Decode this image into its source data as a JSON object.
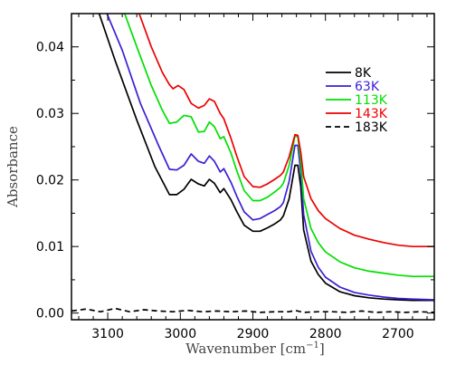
{
  "chart_data": {
    "type": "line",
    "title": "",
    "xlabel": "Wavenumber [cm",
    "xlabel_sup": "−1",
    "xlabel_end": "]",
    "ylabel": "Absorbance",
    "xlim": [
      3150,
      2650
    ],
    "ylim": [
      -0.001,
      0.045
    ],
    "xticks": [
      3100,
      3000,
      2900,
      2800,
      2700
    ],
    "xtick_labels": [
      "3100",
      "3000",
      "2900",
      "2800",
      "2700"
    ],
    "yticks": [
      0.0,
      0.01,
      0.02,
      0.03,
      0.04
    ],
    "ytick_labels": [
      "0.00",
      "0.01",
      "0.02",
      "0.03",
      "0.04"
    ],
    "legend_position": "right",
    "grid": false,
    "series": [
      {
        "name": "8K",
        "color": "#000000",
        "dash": "solid",
        "x": [
          3115,
          3090,
          3060,
          3035,
          3015,
          3005,
          2995,
          2985,
          2975,
          2967,
          2960,
          2953,
          2945,
          2940,
          2930,
          2922,
          2912,
          2900,
          2890,
          2880,
          2870,
          2862,
          2858,
          2850,
          2842,
          2838,
          2834,
          2830,
          2820,
          2810,
          2800,
          2780,
          2760,
          2740,
          2720,
          2700,
          2680,
          2650
        ],
        "y": [
          0.046,
          0.038,
          0.029,
          0.022,
          0.0178,
          0.0178,
          0.0186,
          0.0201,
          0.0194,
          0.0191,
          0.0201,
          0.0195,
          0.0181,
          0.0187,
          0.017,
          0.0152,
          0.0132,
          0.0123,
          0.0123,
          0.0128,
          0.0134,
          0.014,
          0.0146,
          0.0172,
          0.0222,
          0.0222,
          0.019,
          0.0125,
          0.0078,
          0.0058,
          0.0045,
          0.0032,
          0.0026,
          0.0023,
          0.0021,
          0.002,
          0.0019,
          0.0019
        ]
      },
      {
        "name": "63K",
        "color": "#3b1fd6",
        "dash": "solid",
        "x": [
          3105,
          3080,
          3055,
          3030,
          3015,
          3005,
          2995,
          2985,
          2975,
          2967,
          2960,
          2953,
          2945,
          2940,
          2930,
          2922,
          2912,
          2900,
          2890,
          2880,
          2870,
          2862,
          2858,
          2850,
          2842,
          2838,
          2834,
          2830,
          2820,
          2810,
          2800,
          2780,
          2760,
          2740,
          2720,
          2700,
          2680,
          2650
        ],
        "y": [
          0.046,
          0.0395,
          0.0315,
          0.0252,
          0.0216,
          0.0215,
          0.0222,
          0.0239,
          0.0228,
          0.0225,
          0.0236,
          0.0228,
          0.0212,
          0.0217,
          0.0196,
          0.0175,
          0.0152,
          0.014,
          0.0142,
          0.0148,
          0.0154,
          0.016,
          0.0166,
          0.0198,
          0.0252,
          0.0252,
          0.0212,
          0.0148,
          0.0093,
          0.0069,
          0.0054,
          0.0039,
          0.0031,
          0.0027,
          0.0024,
          0.0022,
          0.0021,
          0.002
        ]
      },
      {
        "name": "113K",
        "color": "#00e000",
        "dash": "solid",
        "x": [
          3080,
          3060,
          3040,
          3025,
          3015,
          3005,
          2995,
          2985,
          2975,
          2967,
          2960,
          2953,
          2945,
          2940,
          2930,
          2922,
          2912,
          2900,
          2890,
          2880,
          2870,
          2862,
          2858,
          2850,
          2842,
          2838,
          2834,
          2830,
          2820,
          2810,
          2800,
          2780,
          2760,
          2740,
          2720,
          2700,
          2680,
          2650
        ],
        "y": [
          0.046,
          0.04,
          0.0342,
          0.0305,
          0.0285,
          0.0287,
          0.0297,
          0.0295,
          0.0272,
          0.0273,
          0.0287,
          0.028,
          0.0262,
          0.0265,
          0.024,
          0.0213,
          0.0184,
          0.0169,
          0.0169,
          0.0174,
          0.0182,
          0.0189,
          0.0195,
          0.0222,
          0.0266,
          0.0265,
          0.0228,
          0.0172,
          0.0127,
          0.0106,
          0.0092,
          0.0077,
          0.0068,
          0.0063,
          0.006,
          0.0057,
          0.0055,
          0.0055
        ]
      },
      {
        "name": "143K",
        "color": "#ee0000",
        "dash": "solid",
        "x": [
          3060,
          3040,
          3025,
          3015,
          3010,
          3003,
          2995,
          2985,
          2975,
          2967,
          2960,
          2953,
          2945,
          2940,
          2930,
          2922,
          2912,
          2900,
          2890,
          2880,
          2870,
          2862,
          2858,
          2850,
          2842,
          2838,
          2834,
          2830,
          2820,
          2810,
          2800,
          2780,
          2760,
          2740,
          2720,
          2700,
          2680,
          2650
        ],
        "y": [
          0.046,
          0.04,
          0.0362,
          0.0343,
          0.0337,
          0.0342,
          0.0336,
          0.0315,
          0.0308,
          0.0312,
          0.0322,
          0.0318,
          0.03,
          0.0292,
          0.0262,
          0.0235,
          0.0205,
          0.019,
          0.0189,
          0.0194,
          0.0201,
          0.0207,
          0.0212,
          0.0235,
          0.0268,
          0.0267,
          0.0242,
          0.0205,
          0.0172,
          0.0154,
          0.0142,
          0.0127,
          0.0117,
          0.0111,
          0.0106,
          0.0102,
          0.01,
          0.01
        ]
      },
      {
        "name": "183K",
        "color": "#000000",
        "dash": "dashed",
        "x": [
          3150,
          3130,
          3110,
          3090,
          3070,
          3050,
          3030,
          3010,
          2990,
          2970,
          2950,
          2930,
          2910,
          2890,
          2870,
          2850,
          2842,
          2830,
          2810,
          2790,
          2770,
          2750,
          2730,
          2710,
          2690,
          2670,
          2650
        ],
        "y": [
          0.0003,
          0.0006,
          0.0002,
          0.0007,
          0.0002,
          0.0005,
          0.0003,
          0.0002,
          0.0004,
          0.0002,
          0.0003,
          0.0002,
          0.0003,
          0.0001,
          0.0002,
          0.0002,
          0.0004,
          0.0001,
          0.0002,
          0.0002,
          0.0001,
          0.0003,
          0.0001,
          0.0002,
          0.0001,
          0.0002,
          0.0001
        ]
      }
    ]
  }
}
